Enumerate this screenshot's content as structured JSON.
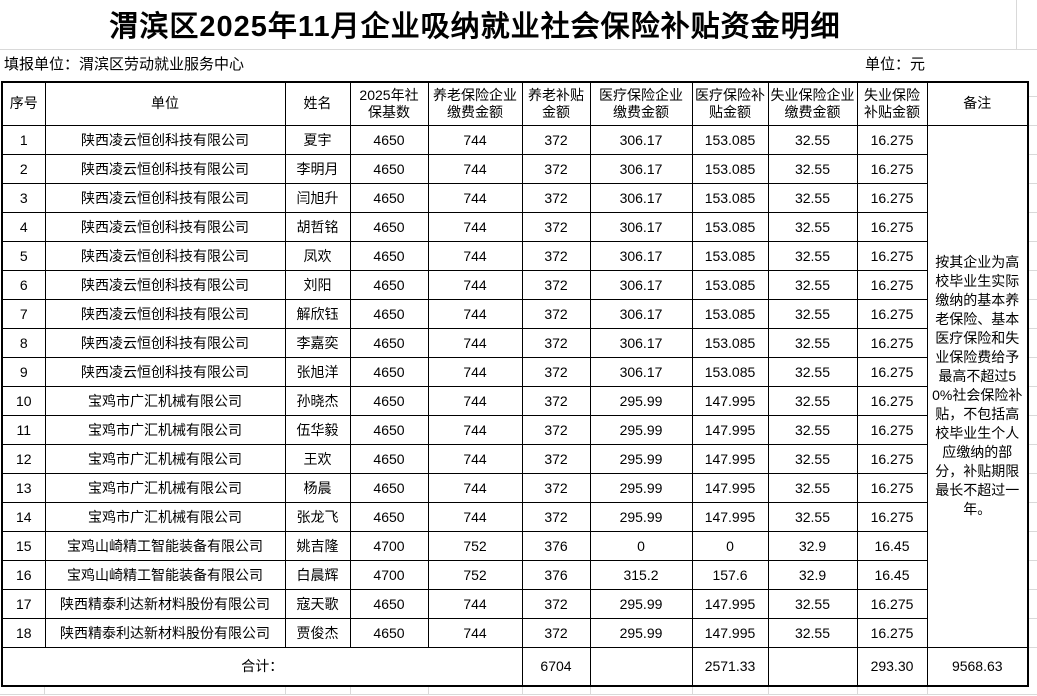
{
  "page": {
    "title": "渭滨区2025年11月企业吸纳就业社会保险补贴资金明细",
    "reporting_unit_label": "填报单位：渭滨区劳动就业服务中心",
    "unit_label": "单位：元"
  },
  "table": {
    "headers": [
      "序号",
      "单位",
      "姓名",
      "2025年社保基数",
      "养老保险企业缴费金额",
      "养老补贴金额",
      "医疗保险企业缴费金额",
      "医疗保险补贴金额",
      "失业保险企业缴费金额",
      "失业保险补贴金额",
      "备注"
    ],
    "rows": [
      [
        "1",
        "陕西凌云恒创科技有限公司",
        "夏宇",
        "4650",
        "744",
        "372",
        "306.17",
        "153.085",
        "32.55",
        "16.275"
      ],
      [
        "2",
        "陕西凌云恒创科技有限公司",
        "李明月",
        "4650",
        "744",
        "372",
        "306.17",
        "153.085",
        "32.55",
        "16.275"
      ],
      [
        "3",
        "陕西凌云恒创科技有限公司",
        "闫旭升",
        "4650",
        "744",
        "372",
        "306.17",
        "153.085",
        "32.55",
        "16.275"
      ],
      [
        "4",
        "陕西凌云恒创科技有限公司",
        "胡哲铭",
        "4650",
        "744",
        "372",
        "306.17",
        "153.085",
        "32.55",
        "16.275"
      ],
      [
        "5",
        "陕西凌云恒创科技有限公司",
        "凤欢",
        "4650",
        "744",
        "372",
        "306.17",
        "153.085",
        "32.55",
        "16.275"
      ],
      [
        "6",
        "陕西凌云恒创科技有限公司",
        "刘阳",
        "4650",
        "744",
        "372",
        "306.17",
        "153.085",
        "32.55",
        "16.275"
      ],
      [
        "7",
        "陕西凌云恒创科技有限公司",
        "解欣钰",
        "4650",
        "744",
        "372",
        "306.17",
        "153.085",
        "32.55",
        "16.275"
      ],
      [
        "8",
        "陕西凌云恒创科技有限公司",
        "李嘉奕",
        "4650",
        "744",
        "372",
        "306.17",
        "153.085",
        "32.55",
        "16.275"
      ],
      [
        "9",
        "陕西凌云恒创科技有限公司",
        "张旭洋",
        "4650",
        "744",
        "372",
        "306.17",
        "153.085",
        "32.55",
        "16.275"
      ],
      [
        "10",
        "宝鸡市广汇机械有限公司",
        "孙晓杰",
        "4650",
        "744",
        "372",
        "295.99",
        "147.995",
        "32.55",
        "16.275"
      ],
      [
        "11",
        "宝鸡市广汇机械有限公司",
        "伍华毅",
        "4650",
        "744",
        "372",
        "295.99",
        "147.995",
        "32.55",
        "16.275"
      ],
      [
        "12",
        "宝鸡市广汇机械有限公司",
        "王欢",
        "4650",
        "744",
        "372",
        "295.99",
        "147.995",
        "32.55",
        "16.275"
      ],
      [
        "13",
        "宝鸡市广汇机械有限公司",
        "杨晨",
        "4650",
        "744",
        "372",
        "295.99",
        "147.995",
        "32.55",
        "16.275"
      ],
      [
        "14",
        "宝鸡市广汇机械有限公司",
        "张龙飞",
        "4650",
        "744",
        "372",
        "295.99",
        "147.995",
        "32.55",
        "16.275"
      ],
      [
        "15",
        "宝鸡山崎精工智能装备有限公司",
        "姚吉隆",
        "4700",
        "752",
        "376",
        "0",
        "0",
        "32.9",
        "16.45"
      ],
      [
        "16",
        "宝鸡山崎精工智能装备有限公司",
        "白晨辉",
        "4700",
        "752",
        "376",
        "315.2",
        "157.6",
        "32.9",
        "16.45"
      ],
      [
        "17",
        "陕西精泰利达新材料股份有限公司",
        "寇天歌",
        "4650",
        "744",
        "372",
        "295.99",
        "147.995",
        "32.55",
        "16.275"
      ],
      [
        "18",
        "陕西精泰利达新材料股份有限公司",
        "贾俊杰",
        "4650",
        "744",
        "372",
        "295.99",
        "147.995",
        "32.55",
        "16.275"
      ]
    ],
    "remark": "按其企业为高校毕业生实际缴纳的基本养老保险、基本医疗保险和失业保险费给予最高不超过50%社会保险补贴，不包括高校毕业生个人应缴纳的部分，补贴期限最长不超过一年。",
    "total": {
      "label": "合计：",
      "pension_subsidy_total": "6704",
      "medical_payment_total": "",
      "medical_subsidy_total": "2571.33",
      "unemployment_payment_total": "",
      "unemployment_subsidy_total": "293.30",
      "grand_total": "9568.63"
    }
  }
}
